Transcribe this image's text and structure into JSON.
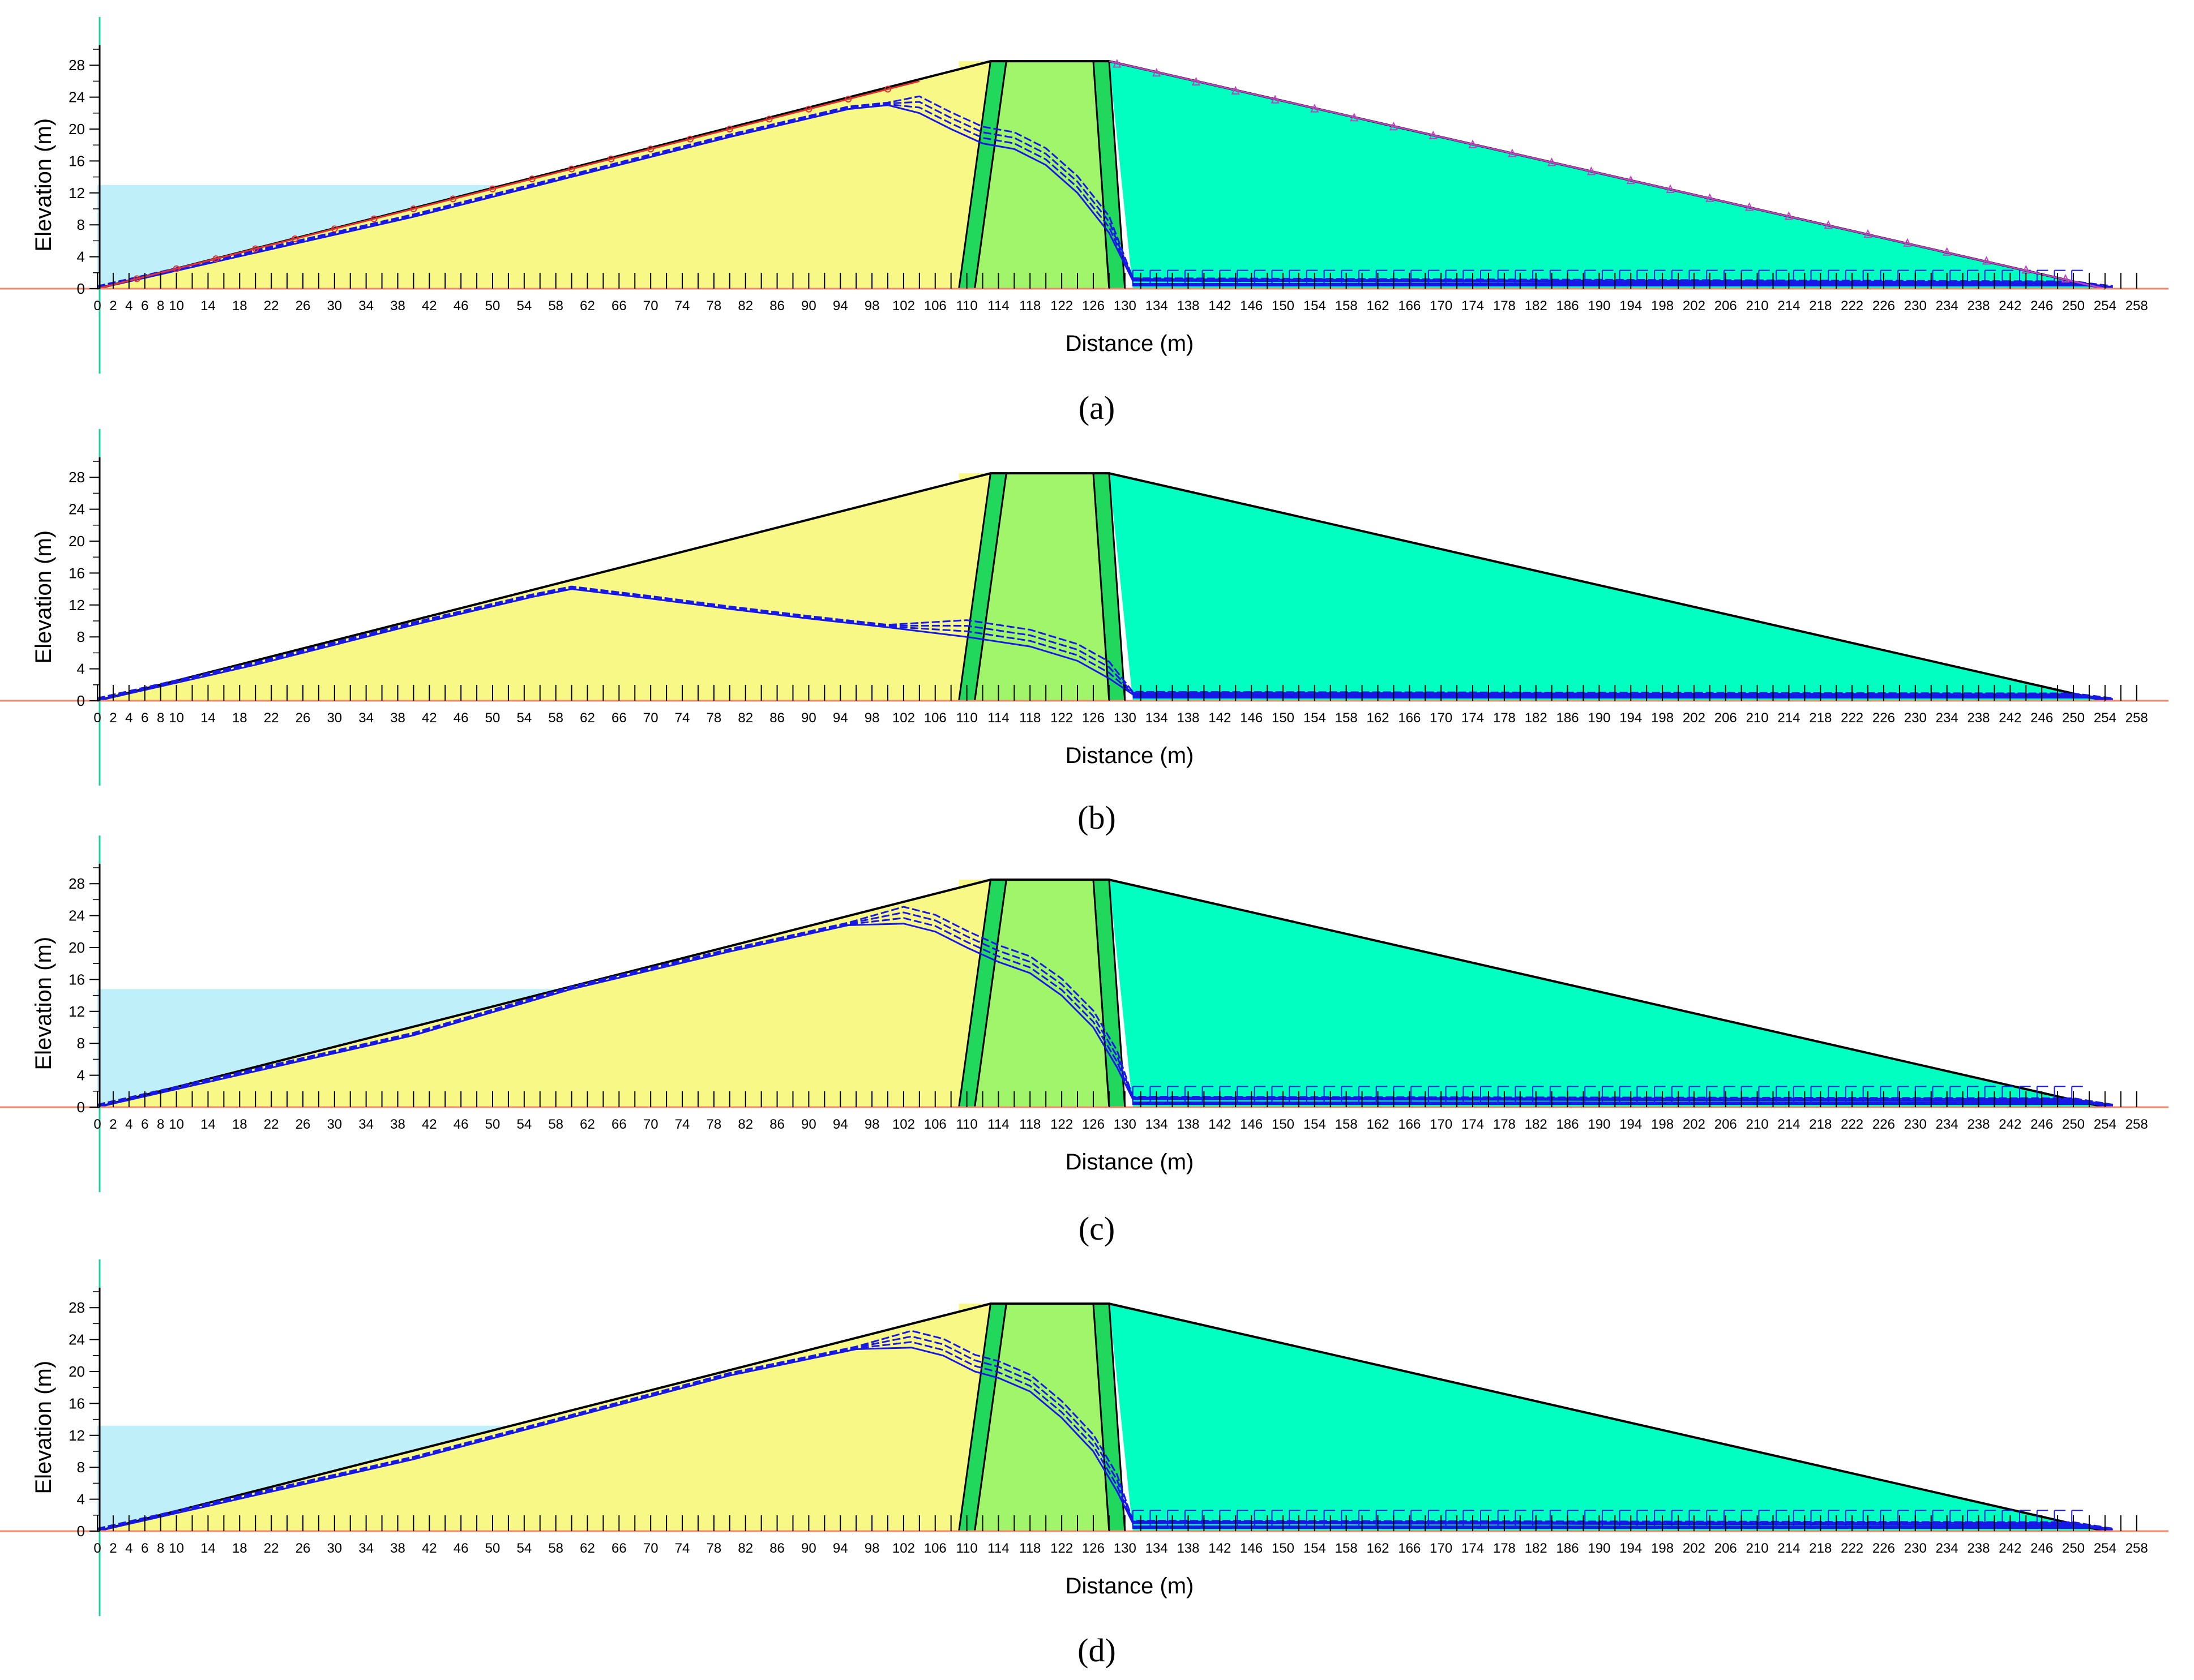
{
  "colors": {
    "upstream_shell": "#f8f886",
    "core_filter": "#21d75c",
    "core": "#a0f56b",
    "downstream_shell": "#00ffc0",
    "reservoir": "#bff0f9",
    "seepage": "#1818e6",
    "outline": "#000000",
    "ground": "#f08a6c",
    "vertical_axis": "#19d2a0",
    "upstream_markers": "#e33030",
    "downstream_markers": "#c040c0"
  },
  "x_ticks": [
    0,
    2,
    4,
    6,
    8,
    10,
    14,
    18,
    22,
    26,
    30,
    34,
    38,
    42,
    46,
    50,
    54,
    58,
    62,
    66,
    70,
    74,
    78,
    82,
    86,
    90,
    94,
    98,
    102,
    106,
    110,
    114,
    118,
    122,
    126,
    130,
    134,
    138,
    142,
    146,
    150,
    154,
    158,
    162,
    166,
    170,
    174,
    178,
    182,
    186,
    190,
    194,
    198,
    202,
    206,
    210,
    214,
    218,
    222,
    226,
    230,
    234,
    238,
    242,
    246,
    250,
    254,
    258
  ],
  "x_tick_labels": [
    "0",
    "2",
    "4",
    "6",
    "8",
    "10",
    "14",
    "18",
    "22",
    "26",
    "30",
    "34",
    "38",
    "42",
    "46",
    "50",
    "54",
    "58",
    "62",
    "66",
    "70",
    "74",
    "78",
    "82",
    "86",
    "90",
    "94",
    "98",
    "102",
    "106",
    "110",
    "114",
    "118",
    "122",
    "126",
    "130",
    "134",
    "138",
    "142",
    "146",
    "150",
    "154",
    "158",
    "162",
    "166",
    "170",
    "174",
    "178",
    "182",
    "186",
    "190",
    "194",
    "198",
    "202",
    "206",
    "210",
    "214",
    "218",
    "222",
    "226",
    "230",
    "234",
    "238",
    "242",
    "246",
    "250",
    "254",
    "258"
  ],
  "y_ticks": [
    0,
    4,
    8,
    12,
    16,
    20,
    24,
    28
  ],
  "y_tick_labels": [
    "0",
    "4",
    "8",
    "12",
    "16",
    "20",
    "24",
    "28"
  ],
  "x_axis_label": "Distance (m)",
  "y_axis_label": "Elevation (m)",
  "dam_geometry": {
    "crest_elevation": 28.5,
    "upstream_toe": 0,
    "upstream_crest": 114,
    "downstream_crest": 127,
    "downstream_toe": 254,
    "core_base": [
      109,
      130
    ],
    "filter_width": 2
  },
  "panels": [
    {
      "label": "(a)",
      "reservoir_level": 13,
      "phreatic": [
        [
          0,
          0
        ],
        [
          20,
          4.5
        ],
        [
          40,
          9
        ],
        [
          60,
          14
        ],
        [
          80,
          19
        ],
        [
          95,
          22.5
        ],
        [
          100,
          23
        ],
        [
          104,
          22
        ],
        [
          108,
          20
        ],
        [
          112,
          18.2
        ],
        [
          116,
          17.5
        ],
        [
          120,
          15.5
        ],
        [
          124,
          12
        ],
        [
          128,
          7
        ],
        [
          131,
          1
        ],
        [
          250,
          0.6
        ],
        [
          255,
          0
        ]
      ],
      "flow_ticks": true,
      "upstream_markers": true,
      "downstream_markers": true
    },
    {
      "label": "(b)",
      "reservoir_level": null,
      "phreatic": [
        [
          0,
          0
        ],
        [
          20,
          4.5
        ],
        [
          40,
          9.5
        ],
        [
          55,
          13
        ],
        [
          60,
          14
        ],
        [
          70,
          12.8
        ],
        [
          80,
          11.5
        ],
        [
          90,
          10.3
        ],
        [
          100,
          9.2
        ],
        [
          110,
          8
        ],
        [
          118,
          6.8
        ],
        [
          124,
          5
        ],
        [
          128,
          2.8
        ],
        [
          131,
          0.8
        ],
        [
          250,
          0.6
        ],
        [
          255,
          0
        ]
      ],
      "flow_ticks": false,
      "upstream_markers": false,
      "downstream_markers": false
    },
    {
      "label": "(c)",
      "reservoir_level": 14.8,
      "phreatic": [
        [
          0,
          0
        ],
        [
          40,
          9
        ],
        [
          60,
          14.8
        ],
        [
          80,
          19.5
        ],
        [
          95,
          22.8
        ],
        [
          102,
          23
        ],
        [
          106,
          22
        ],
        [
          110,
          20
        ],
        [
          114,
          18.2
        ],
        [
          118,
          16.8
        ],
        [
          122,
          14
        ],
        [
          126,
          10
        ],
        [
          129,
          5
        ],
        [
          131,
          1
        ],
        [
          250,
          0.8
        ],
        [
          255,
          0
        ]
      ],
      "flow_ticks": true,
      "upstream_markers": false,
      "downstream_markers": false
    },
    {
      "label": "(d)",
      "reservoir_level": 13.2,
      "phreatic": [
        [
          0,
          0
        ],
        [
          40,
          9
        ],
        [
          56,
          13.2
        ],
        [
          80,
          19.5
        ],
        [
          96,
          22.8
        ],
        [
          103,
          23
        ],
        [
          107,
          22
        ],
        [
          111,
          20
        ],
        [
          114,
          19.2
        ],
        [
          118,
          17.5
        ],
        [
          122,
          14.2
        ],
        [
          126,
          10
        ],
        [
          129,
          5
        ],
        [
          131,
          1
        ],
        [
          250,
          0.8
        ],
        [
          255,
          0
        ]
      ],
      "flow_ticks": true,
      "upstream_markers": false,
      "downstream_markers": false
    }
  ]
}
